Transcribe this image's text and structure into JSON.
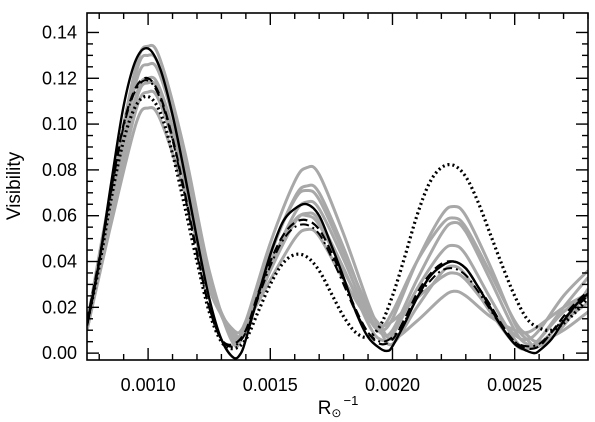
{
  "chart_data": {
    "type": "line",
    "xlabel": "R",
    "xlabel_sub": "⊙",
    "xlabel_sup": "−1",
    "ylabel": "Visibility",
    "xlim": [
      0.00075,
      0.0028
    ],
    "ylim": [
      -0.003,
      0.1485
    ],
    "x_ticks": [
      {
        "value": 0.001,
        "label": "0.0010"
      },
      {
        "value": 0.0015,
        "label": "0.0015"
      },
      {
        "value": 0.002,
        "label": "0.0020"
      },
      {
        "value": 0.0025,
        "label": "0.0025"
      }
    ],
    "y_ticks": [
      {
        "value": 0.0,
        "label": "0.00"
      },
      {
        "value": 0.02,
        "label": "0.02"
      },
      {
        "value": 0.04,
        "label": "0.04"
      },
      {
        "value": 0.06,
        "label": "0.06"
      },
      {
        "value": 0.08,
        "label": "0.08"
      },
      {
        "value": 0.1,
        "label": "0.10"
      },
      {
        "value": 0.12,
        "label": "0.12"
      },
      {
        "value": 0.14,
        "label": "0.14"
      }
    ],
    "grey_color": "#a8a8a8",
    "black_color": "#000000",
    "grey_series": [
      {
        "x": [
          0.00075,
          0.00085,
          0.00095,
          0.001,
          0.00105,
          0.00115,
          0.00125,
          0.00135,
          0.0014,
          0.0015,
          0.0016,
          0.00165,
          0.0017,
          0.0018,
          0.0019,
          0.00195,
          0.002,
          0.0021,
          0.0022,
          0.00225,
          0.0023,
          0.0024,
          0.0025,
          0.00255,
          0.0026,
          0.0027,
          0.0028
        ],
        "y": [
          0.013,
          0.072,
          0.125,
          0.134,
          0.128,
          0.088,
          0.036,
          0.004,
          0.014,
          0.048,
          0.075,
          0.081,
          0.078,
          0.052,
          0.022,
          0.01,
          0.004,
          0.02,
          0.035,
          0.038,
          0.034,
          0.018,
          0.004,
          0.002,
          0.006,
          0.018,
          0.025
        ]
      },
      {
        "x": [
          0.00075,
          0.00085,
          0.00095,
          0.001,
          0.00105,
          0.00115,
          0.00125,
          0.00135,
          0.0014,
          0.0015,
          0.0016,
          0.00165,
          0.0017,
          0.0018,
          0.0019,
          0.00195,
          0.002,
          0.0021,
          0.0022,
          0.00225,
          0.0023,
          0.0024,
          0.0025,
          0.00255,
          0.0026,
          0.0027,
          0.0028
        ],
        "y": [
          0.012,
          0.068,
          0.118,
          0.126,
          0.121,
          0.083,
          0.034,
          0.006,
          0.012,
          0.043,
          0.068,
          0.073,
          0.07,
          0.046,
          0.018,
          0.009,
          0.01,
          0.032,
          0.052,
          0.057,
          0.053,
          0.032,
          0.01,
          0.004,
          0.004,
          0.014,
          0.022
        ]
      },
      {
        "x": [
          0.00075,
          0.00085,
          0.00095,
          0.001,
          0.00105,
          0.00115,
          0.00125,
          0.00135,
          0.0014,
          0.0015,
          0.0016,
          0.00165,
          0.0017,
          0.0018,
          0.0019,
          0.00195,
          0.002,
          0.0021,
          0.0022,
          0.00225,
          0.0023,
          0.0024,
          0.0025,
          0.00255,
          0.0026,
          0.0027,
          0.0028
        ],
        "y": [
          0.011,
          0.064,
          0.112,
          0.12,
          0.115,
          0.079,
          0.032,
          0.008,
          0.01,
          0.038,
          0.061,
          0.066,
          0.063,
          0.041,
          0.016,
          0.01,
          0.015,
          0.04,
          0.06,
          0.064,
          0.06,
          0.038,
          0.013,
          0.006,
          0.003,
          0.012,
          0.028
        ]
      },
      {
        "x": [
          0.00075,
          0.00085,
          0.00095,
          0.001,
          0.00105,
          0.00115,
          0.00125,
          0.00135,
          0.0014,
          0.0015,
          0.0016,
          0.00165,
          0.0017,
          0.0018,
          0.0019,
          0.00195,
          0.002,
          0.0021,
          0.0022,
          0.00225,
          0.0023,
          0.0024,
          0.0025,
          0.00255,
          0.0026,
          0.0027,
          0.0028
        ],
        "y": [
          0.01,
          0.06,
          0.106,
          0.114,
          0.109,
          0.075,
          0.03,
          0.009,
          0.011,
          0.036,
          0.057,
          0.061,
          0.058,
          0.037,
          0.013,
          0.006,
          0.008,
          0.028,
          0.044,
          0.047,
          0.043,
          0.024,
          0.006,
          0.002,
          0.006,
          0.02,
          0.033
        ]
      },
      {
        "x": [
          0.00075,
          0.00085,
          0.00095,
          0.001,
          0.00105,
          0.00115,
          0.00125,
          0.00135,
          0.0014,
          0.0015,
          0.0016,
          0.00165,
          0.0017,
          0.0018,
          0.0019,
          0.00195,
          0.002,
          0.0021,
          0.0022,
          0.00225,
          0.0023,
          0.0024,
          0.0025,
          0.00255,
          0.0026,
          0.0027,
          0.0028
        ],
        "y": [
          0.01,
          0.057,
          0.1,
          0.107,
          0.102,
          0.07,
          0.028,
          0.01,
          0.013,
          0.032,
          0.05,
          0.054,
          0.051,
          0.032,
          0.015,
          0.012,
          0.014,
          0.024,
          0.033,
          0.035,
          0.032,
          0.019,
          0.008,
          0.006,
          0.01,
          0.025,
          0.036
        ]
      },
      {
        "x": [
          0.00075,
          0.00085,
          0.00095,
          0.001,
          0.00105,
          0.00115,
          0.00125,
          0.00135,
          0.0014,
          0.0015,
          0.0016,
          0.00165,
          0.0017,
          0.0018,
          0.0019,
          0.00195,
          0.002,
          0.0021,
          0.0022,
          0.00225,
          0.0023,
          0.0024,
          0.0025,
          0.00255,
          0.0026,
          0.0027,
          0.0028
        ],
        "y": [
          0.012,
          0.07,
          0.122,
          0.13,
          0.124,
          0.085,
          0.034,
          0.005,
          0.012,
          0.044,
          0.067,
          0.071,
          0.067,
          0.044,
          0.02,
          0.012,
          0.006,
          0.014,
          0.024,
          0.027,
          0.025,
          0.016,
          0.01,
          0.009,
          0.012,
          0.02,
          0.026
        ]
      },
      {
        "x": [
          0.00075,
          0.00085,
          0.00095,
          0.001,
          0.00105,
          0.00115,
          0.00125,
          0.00135,
          0.0014,
          0.0015,
          0.0016,
          0.00165,
          0.0017,
          0.0018,
          0.0019,
          0.00195,
          0.002,
          0.0021,
          0.0022,
          0.00225,
          0.0023,
          0.0024,
          0.0025,
          0.00255,
          0.0026,
          0.0027,
          0.0028
        ],
        "y": [
          0.011,
          0.063,
          0.11,
          0.118,
          0.113,
          0.078,
          0.031,
          0.007,
          0.014,
          0.04,
          0.058,
          0.06,
          0.056,
          0.036,
          0.016,
          0.011,
          0.018,
          0.04,
          0.056,
          0.059,
          0.055,
          0.035,
          0.014,
          0.008,
          0.005,
          0.01,
          0.018
        ]
      }
    ],
    "black_series": [
      {
        "name": "",
        "style": "solid",
        "width": 2.4,
        "x": [
          0.00075,
          0.0008,
          0.00085,
          0.0009,
          0.00095,
          0.001,
          0.00105,
          0.0011,
          0.00115,
          0.0012,
          0.00125,
          0.0013,
          0.00135,
          0.00138,
          0.0014,
          0.00145,
          0.0015,
          0.00155,
          0.0016,
          0.00165,
          0.0017,
          0.00175,
          0.0018,
          0.00185,
          0.0019,
          0.00195,
          0.00198,
          0.002,
          0.00205,
          0.0021,
          0.00215,
          0.0022,
          0.00225,
          0.0023,
          0.00235,
          0.0024,
          0.00245,
          0.0025,
          0.00255,
          0.00258,
          0.0026,
          0.00265,
          0.0027,
          0.00275,
          0.0028
        ],
        "y": [
          0.012,
          0.04,
          0.075,
          0.108,
          0.128,
          0.133,
          0.124,
          0.104,
          0.078,
          0.05,
          0.024,
          0.006,
          -0.002,
          0.0,
          0.006,
          0.025,
          0.043,
          0.057,
          0.063,
          0.065,
          0.06,
          0.047,
          0.033,
          0.018,
          0.007,
          0.002,
          0.001,
          0.003,
          0.013,
          0.024,
          0.033,
          0.038,
          0.04,
          0.037,
          0.029,
          0.02,
          0.011,
          0.004,
          0.001,
          0.0,
          0.001,
          0.006,
          0.014,
          0.021,
          0.026
        ]
      },
      {
        "name": "",
        "style": "dashed",
        "width": 2.2,
        "x": [
          0.00075,
          0.0008,
          0.00085,
          0.0009,
          0.00095,
          0.001,
          0.00105,
          0.0011,
          0.00115,
          0.0012,
          0.00125,
          0.0013,
          0.00135,
          0.0014,
          0.00145,
          0.0015,
          0.00155,
          0.0016,
          0.00165,
          0.0017,
          0.00175,
          0.0018,
          0.00185,
          0.0019,
          0.00195,
          0.002,
          0.00205,
          0.0021,
          0.00215,
          0.0022,
          0.00225,
          0.0023,
          0.00235,
          0.0024,
          0.00245,
          0.0025,
          0.00255,
          0.0026,
          0.00265,
          0.0027,
          0.00275,
          0.0028
        ],
        "y": [
          0.014,
          0.041,
          0.072,
          0.1,
          0.116,
          0.12,
          0.112,
          0.094,
          0.07,
          0.044,
          0.02,
          0.006,
          0.004,
          0.01,
          0.026,
          0.04,
          0.051,
          0.057,
          0.058,
          0.054,
          0.044,
          0.032,
          0.019,
          0.009,
          0.004,
          0.006,
          0.015,
          0.026,
          0.034,
          0.039,
          0.04,
          0.037,
          0.029,
          0.021,
          0.012,
          0.005,
          0.002,
          0.003,
          0.009,
          0.016,
          0.022,
          0.027
        ]
      },
      {
        "name": "",
        "style": "dashdot",
        "width": 2.0,
        "x": [
          0.00075,
          0.0008,
          0.00085,
          0.0009,
          0.00095,
          0.001,
          0.00105,
          0.0011,
          0.00115,
          0.0012,
          0.00125,
          0.0013,
          0.00135,
          0.0014,
          0.00145,
          0.0015,
          0.00155,
          0.0016,
          0.00165,
          0.0017,
          0.00175,
          0.0018,
          0.00185,
          0.0019,
          0.00195,
          0.002,
          0.00205,
          0.0021,
          0.00215,
          0.0022,
          0.00225,
          0.0023,
          0.00235,
          0.0024,
          0.00245,
          0.0025,
          0.00255,
          0.0026,
          0.00265,
          0.0027,
          0.00275,
          0.0028
        ],
        "y": [
          0.013,
          0.04,
          0.071,
          0.099,
          0.115,
          0.119,
          0.111,
          0.093,
          0.069,
          0.043,
          0.02,
          0.006,
          0.003,
          0.009,
          0.024,
          0.038,
          0.049,
          0.055,
          0.056,
          0.052,
          0.042,
          0.03,
          0.018,
          0.009,
          0.005,
          0.007,
          0.014,
          0.024,
          0.031,
          0.036,
          0.037,
          0.034,
          0.027,
          0.019,
          0.011,
          0.005,
          0.003,
          0.004,
          0.009,
          0.015,
          0.02,
          0.025
        ]
      },
      {
        "name": "",
        "style": "dotted",
        "width": 3.2,
        "x": [
          0.00075,
          0.0008,
          0.00085,
          0.0009,
          0.00095,
          0.001,
          0.00105,
          0.0011,
          0.00115,
          0.0012,
          0.00125,
          0.0013,
          0.00135,
          0.0014,
          0.00145,
          0.0015,
          0.00155,
          0.0016,
          0.00165,
          0.0017,
          0.00175,
          0.0018,
          0.00185,
          0.0019,
          0.00195,
          0.002,
          0.00205,
          0.0021,
          0.00215,
          0.0022,
          0.00225,
          0.0023,
          0.00235,
          0.0024,
          0.00245,
          0.0025,
          0.00255,
          0.0026,
          0.00265,
          0.0027,
          0.00275,
          0.0028
        ],
        "y": [
          0.013,
          0.038,
          0.068,
          0.093,
          0.108,
          0.112,
          0.105,
          0.087,
          0.064,
          0.04,
          0.018,
          0.005,
          0.002,
          0.006,
          0.018,
          0.03,
          0.039,
          0.043,
          0.042,
          0.036,
          0.026,
          0.016,
          0.009,
          0.007,
          0.012,
          0.025,
          0.042,
          0.06,
          0.074,
          0.081,
          0.082,
          0.077,
          0.066,
          0.052,
          0.038,
          0.025,
          0.015,
          0.011,
          0.01,
          0.013,
          0.018,
          0.024
        ]
      }
    ]
  }
}
